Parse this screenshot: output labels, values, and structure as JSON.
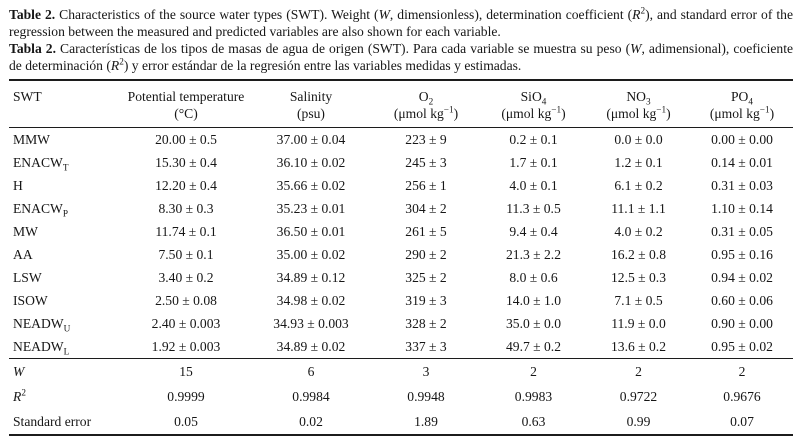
{
  "caption_en": {
    "bold": "Table 2.",
    "t1": " Characteristics of the source water types (SWT). Weight (",
    "i1": "W",
    "t2": ", dimensionless), determination coefficient (",
    "i2": "R",
    "sup": "2",
    "t3": "), and standard error of the regression between the measured and predicted variables are also shown for each variable."
  },
  "caption_es": {
    "bold": "Tabla 2.",
    "t1": " Características de los tipos de masas de agua de origen (SWT). Para cada variable se muestra su peso (",
    "i1": "W",
    "t2": ", adimensional), coeficiente de determinación (",
    "i2": "R",
    "sup": "2",
    "t3": ") y error estándar de la regresión entre las variables medidas y estimadas."
  },
  "table": {
    "columns": [
      {
        "key": "swt",
        "label": "SWT",
        "label_sub": "",
        "unit_pre": "",
        "unit_sup": "",
        "unit_post": ""
      },
      {
        "key": "potential-temperature",
        "label": "Potential temperature",
        "label_sub": "",
        "unit_pre": "(°C)",
        "unit_sup": "",
        "unit_post": ""
      },
      {
        "key": "salinity",
        "label": "Salinity",
        "label_sub": "",
        "unit_pre": "(psu)",
        "unit_sup": "",
        "unit_post": ""
      },
      {
        "key": "o2",
        "label": "O",
        "label_sub": "2",
        "unit_pre": "(μmol kg",
        "unit_sup": "−1",
        "unit_post": ")"
      },
      {
        "key": "sio4",
        "label": "SiO",
        "label_sub": "4",
        "unit_pre": "(μmol kg",
        "unit_sup": "−1",
        "unit_post": ")"
      },
      {
        "key": "no3",
        "label": "NO",
        "label_sub": "3",
        "unit_pre": "(μmol kg",
        "unit_sup": "−1",
        "unit_post": ")"
      },
      {
        "key": "po4",
        "label": "PO",
        "label_sub": "4",
        "unit_pre": "(μmol kg",
        "unit_sup": "−1",
        "unit_post": ")"
      }
    ],
    "rows": [
      {
        "swt": "MMW",
        "sub": "",
        "values": [
          "20.00 ± 0.5",
          "37.00 ± 0.04",
          "223 ± 9",
          "0.2 ± 0.1",
          "0.0 ± 0.0",
          "0.00 ± 0.00"
        ]
      },
      {
        "swt": "ENACW",
        "sub": "T",
        "values": [
          "15.30 ± 0.4",
          "36.10 ± 0.02",
          "245 ± 3",
          "1.7 ± 0.1",
          "1.2 ± 0.1",
          "0.14 ± 0.01"
        ]
      },
      {
        "swt": "H",
        "sub": "",
        "values": [
          "12.20 ± 0.4",
          "35.66 ± 0.02",
          "256 ± 1",
          "4.0 ± 0.1",
          "6.1 ± 0.2",
          "0.31 ± 0.03"
        ]
      },
      {
        "swt": "ENACW",
        "sub": "P",
        "values": [
          "8.30 ± 0.3",
          "35.23 ± 0.01",
          "304 ± 2",
          "11.3 ± 0.5",
          "11.1 ± 1.1",
          "1.10 ± 0.14"
        ]
      },
      {
        "swt": "MW",
        "sub": "",
        "values": [
          "11.74 ± 0.1",
          "36.50 ± 0.01",
          "261 ± 5",
          "9.4 ± 0.4",
          "4.0 ± 0.2",
          "0.31 ± 0.05"
        ]
      },
      {
        "swt": "AA",
        "sub": "",
        "values": [
          "7.50 ± 0.1",
          "35.00 ± 0.02",
          "290 ± 2",
          "21.3 ± 2.2",
          "16.2 ± 0.8",
          "0.95 ± 0.16"
        ]
      },
      {
        "swt": "LSW",
        "sub": "",
        "values": [
          "3.40 ± 0.2",
          "34.89 ± 0.12",
          "325 ± 2",
          "8.0 ± 0.6",
          "12.5 ± 0.3",
          "0.94 ± 0.02"
        ]
      },
      {
        "swt": "ISOW",
        "sub": "",
        "values": [
          "2.50 ± 0.08",
          "34.98 ± 0.02",
          "319 ± 3",
          "14.0 ± 1.0",
          "7.1 ± 0.5",
          "0.60 ± 0.06"
        ]
      },
      {
        "swt": "NEADW",
        "sub": "U",
        "values": [
          "2.40 ± 0.003",
          "34.93 ± 0.003",
          "328 ± 2",
          "35.0 ± 0.0",
          "11.9 ± 0.0",
          "0.90 ± 0.00"
        ]
      },
      {
        "swt": "NEADW",
        "sub": "L",
        "values": [
          "1.92 ± 0.003",
          "34.89 ± 0.02",
          "337 ± 3",
          "49.7 ± 0.2",
          "13.6 ± 0.2",
          "0.95 ± 0.02"
        ]
      }
    ],
    "summary_rows": [
      {
        "label": "W",
        "italic": true,
        "sup": "",
        "values": [
          "15",
          "6",
          "3",
          "2",
          "2",
          "2"
        ]
      },
      {
        "label": "R",
        "italic": true,
        "sup": "2",
        "values": [
          "0.9999",
          "0.9984",
          "0.9948",
          "0.9983",
          "0.9722",
          "0.9676"
        ]
      },
      {
        "label": "Standard error",
        "italic": false,
        "sup": "",
        "values": [
          "0.05",
          "0.02",
          "1.89",
          "0.63",
          "0.99",
          "0.07"
        ]
      }
    ]
  }
}
